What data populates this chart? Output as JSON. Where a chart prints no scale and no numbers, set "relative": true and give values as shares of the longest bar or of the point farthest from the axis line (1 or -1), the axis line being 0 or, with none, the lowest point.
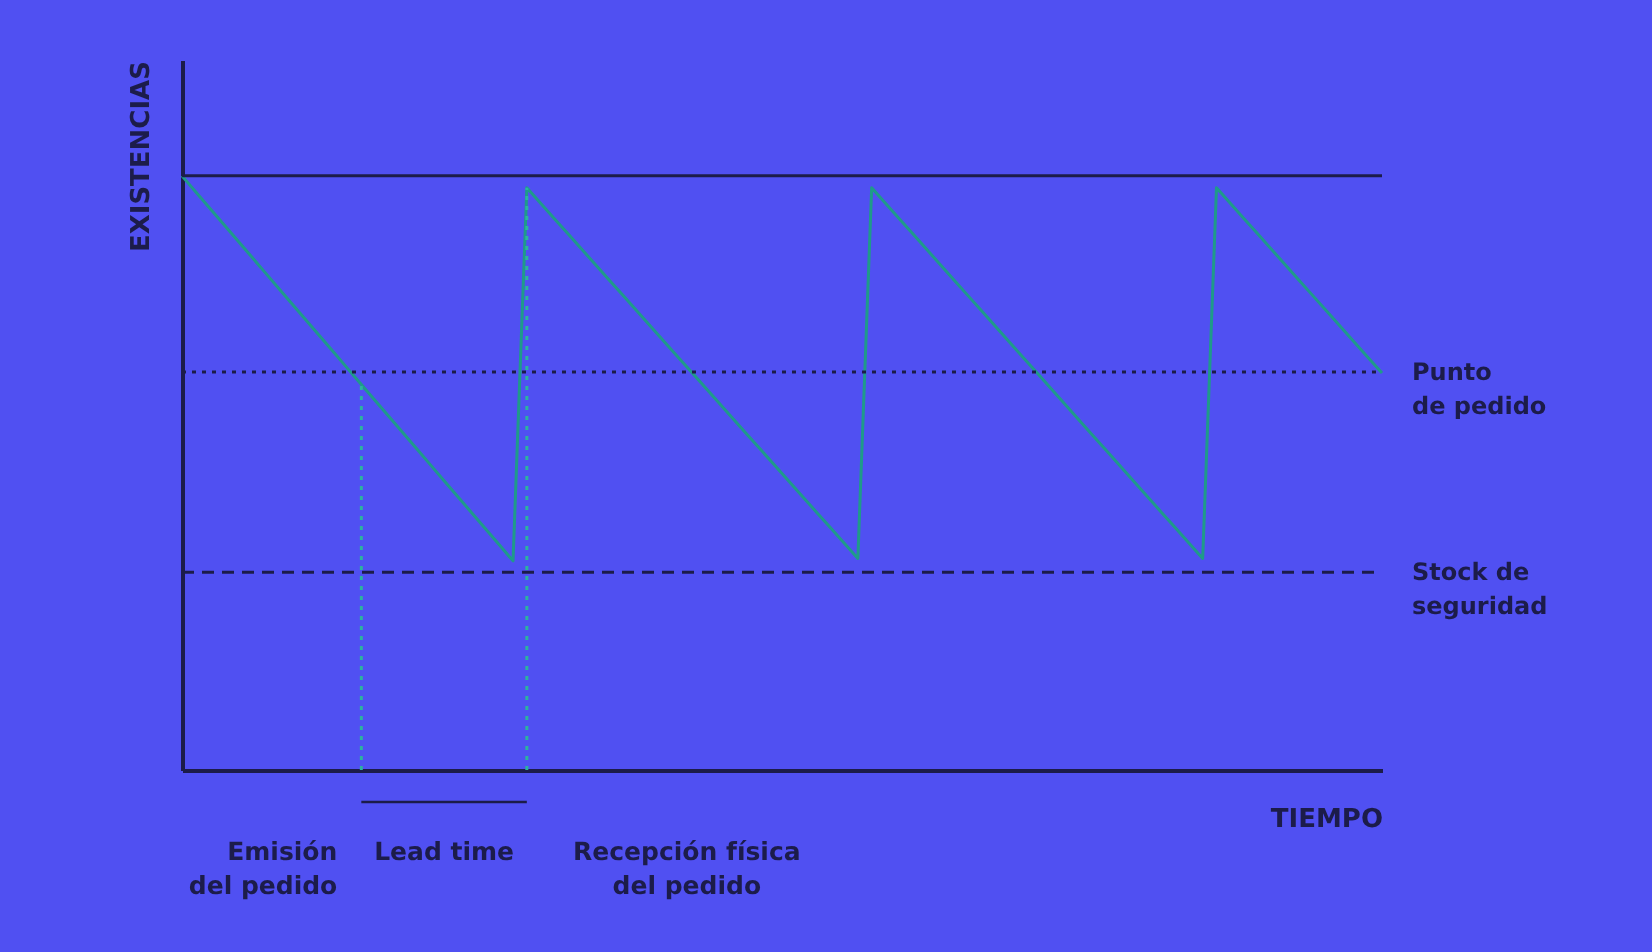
{
  "chart_data": {
    "type": "line",
    "relative": true,
    "xlabel": "TIEMPO",
    "ylabel": "EXISTENCIAS",
    "categories": [
      null,
      null,
      null,
      null,
      null,
      null,
      null,
      null,
      null,
      null,
      null,
      null,
      null,
      null,
      null,
      null,
      null,
      null,
      null,
      null,
      null,
      null,
      null,
      null,
      null,
      null,
      null,
      null,
      null,
      null,
      null,
      null,
      null,
      null,
      null,
      null,
      null,
      null,
      null,
      null,
      null,
      null,
      null,
      null,
      null,
      null,
      null,
      null,
      null,
      null,
      null,
      null,
      null,
      null,
      null,
      null,
      null,
      null,
      null,
      null,
      null,
      null,
      null,
      null,
      null,
      null,
      null,
      null,
      null,
      null,
      null,
      null,
      null,
      null,
      null,
      null,
      null,
      null,
      null,
      null,
      null,
      null,
      null,
      null,
      null,
      null,
      null,
      null
    ],
    "series": [
      {
        "color": "#1f9a8a",
        "values": [
          1.0,
          0.973,
          0.946,
          0.919,
          0.892,
          0.865,
          0.838,
          0.811,
          0.784,
          0.757,
          0.73,
          0.703,
          0.676,
          0.649,
          0.622,
          0.595,
          0.568,
          0.541,
          0.514,
          0.487,
          0.46,
          0.433,
          0.406,
          0.379,
          0.352,
          0.98,
          0.954,
          0.928,
          0.902,
          0.876,
          0.85,
          0.824,
          0.798,
          0.772,
          0.746,
          0.72,
          0.694,
          0.668,
          0.642,
          0.616,
          0.59,
          0.564,
          0.538,
          0.512,
          0.486,
          0.46,
          0.434,
          0.408,
          0.382,
          0.356,
          0.98,
          0.954,
          0.928,
          0.902,
          0.876,
          0.85,
          0.824,
          0.798,
          0.772,
          0.746,
          0.72,
          0.694,
          0.668,
          0.642,
          0.616,
          0.59,
          0.564,
          0.538,
          0.512,
          0.486,
          0.46,
          0.434,
          0.408,
          0.382,
          0.356,
          0.98,
          0.954,
          0.928,
          0.902,
          0.876,
          0.85,
          0.824,
          0.798,
          0.772,
          0.746,
          0.72,
          0.694,
          0.668
        ]
      }
    ],
    "tick_labels": false,
    "marker": "none",
    "line_style": "solid",
    "grid": false,
    "ref_lines": [
      {
        "axis": "y",
        "value": 1.0,
        "label": null,
        "color": "#1c1c4a",
        "line_style": "solid"
      },
      {
        "axis": "y",
        "value": 0.67,
        "label": "Punto\nde pedido",
        "color": "#1c1c4a",
        "line_style": "dotted"
      },
      {
        "axis": "y",
        "value": 0.333,
        "label": "Stock de\nseguridad",
        "color": "#1c1c4a",
        "line_style": "dashed"
      }
    ],
    "annotations": [
      "Lead time",
      "Emisión\ndel pedido",
      "Recepción física\ndel pedido"
    ]
  }
}
